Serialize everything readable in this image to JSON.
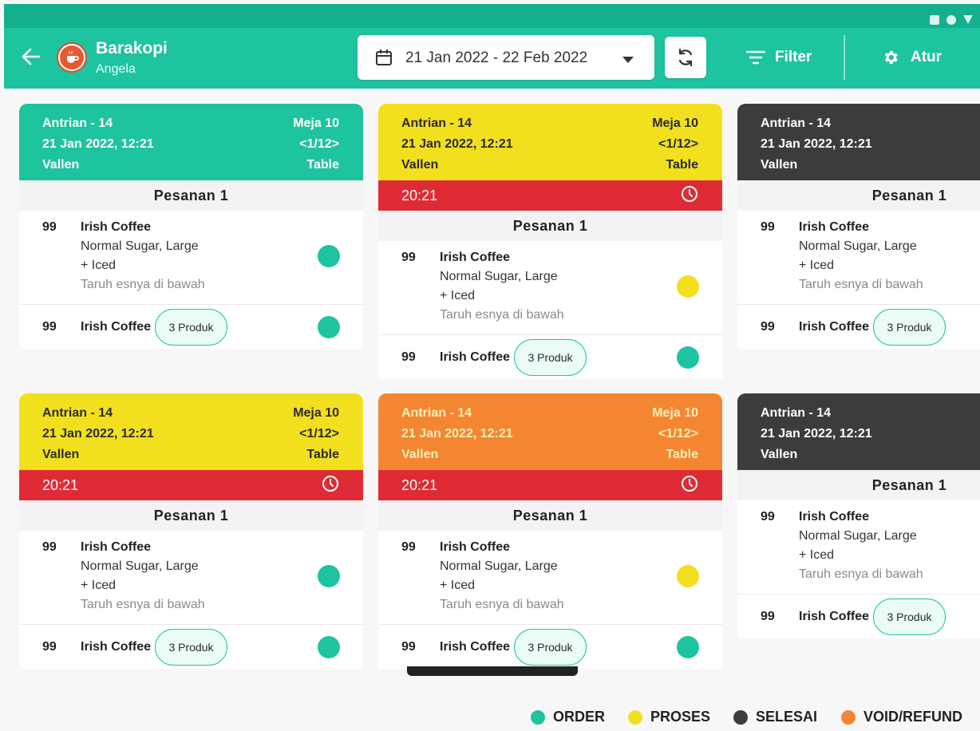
{
  "colors": {
    "appbar": "#1ec39f",
    "order": "#1ec39f",
    "proses": "#f2e01e",
    "selesai": "#3b3d3c",
    "void_refund": "#f58631",
    "timer": "#df2b35"
  },
  "header": {
    "back_icon": "arrow-left-icon",
    "shop_name": "Barakopi",
    "user_name": "Angela",
    "date_range": "21 Jan 2022 - 22 Feb 2022",
    "filter_label": "Filter",
    "settings_label": "Atur"
  },
  "cards": [
    {
      "status": "order",
      "queue": "Antrian - 14",
      "datetime": "21 Jan 2022, 12:21",
      "customer": "Vallen",
      "table": "Meja 10",
      "table_page": "<1/12>",
      "table_type": "Table",
      "timer": "",
      "section": "Pesanan 1",
      "item1": {
        "qty": "99",
        "name": "Irish Coffee",
        "variant": "Normal Sugar, Large",
        "addon": "+ Iced",
        "note": "Taruh esnya di bawah",
        "dot": "order"
      },
      "item2": {
        "qty": "99",
        "name": "Irish Coffee",
        "badge": "3 Produk",
        "dot": "order"
      }
    },
    {
      "status": "proses",
      "queue": "Antrian - 14",
      "datetime": "21 Jan 2022, 12:21",
      "customer": "Vallen",
      "table": "Meja 10",
      "table_page": "<1/12>",
      "table_type": "Table",
      "timer": "20:21",
      "section": "Pesanan 1",
      "item1": {
        "qty": "99",
        "name": "Irish Coffee",
        "variant": "Normal Sugar, Large",
        "addon": "+ Iced",
        "note": "Taruh esnya di bawah",
        "dot": "proses"
      },
      "item2": {
        "qty": "99",
        "name": "Irish Coffee",
        "badge": "3 Produk",
        "dot": "order"
      }
    },
    {
      "status": "selesai",
      "queue": "Antrian - 14",
      "datetime": "21 Jan 2022, 12:21",
      "customer": "Vallen",
      "table": "",
      "table_page": "",
      "table_type": "",
      "timer": "",
      "section": "Pesanan 1",
      "item1": {
        "qty": "99",
        "name": "Irish Coffee",
        "variant": "Normal Sugar, Large",
        "addon": "+ Iced",
        "note": "Taruh esnya di bawah",
        "dot": ""
      },
      "item2": {
        "qty": "99",
        "name": "Irish Coffee",
        "badge": "3 Produk",
        "dot": ""
      }
    },
    {
      "status": "proses",
      "queue": "Antrian - 14",
      "datetime": "21 Jan 2022, 12:21",
      "customer": "Vallen",
      "table": "Meja 10",
      "table_page": "<1/12>",
      "table_type": "Table",
      "timer": "20:21",
      "section": "Pesanan 1",
      "item1": {
        "qty": "99",
        "name": "Irish Coffee",
        "variant": "Normal Sugar, Large",
        "addon": "+ Iced",
        "note": "Taruh esnya di bawah",
        "dot": "order"
      },
      "item2": {
        "qty": "99",
        "name": "Irish Coffee",
        "badge": "3 Produk",
        "dot": "order"
      }
    },
    {
      "status": "void_refund",
      "queue": "Antrian - 14",
      "datetime": "21 Jan 2022, 12:21",
      "customer": "Vallen",
      "table": "Meja 10",
      "table_page": "<1/12>",
      "table_type": "Table",
      "timer": "20:21",
      "section": "Pesanan 1",
      "item1": {
        "qty": "99",
        "name": "Irish Coffee",
        "variant": "Normal Sugar, Large",
        "addon": "+ Iced",
        "note": "Taruh esnya di bawah",
        "dot": "proses"
      },
      "item2": {
        "qty": "99",
        "name": "Irish Coffee",
        "badge": "3 Produk",
        "dot": "order"
      }
    },
    {
      "status": "selesai",
      "queue": "Antrian - 14",
      "datetime": "21 Jan 2022, 12:21",
      "customer": "Vallen",
      "table": "",
      "table_page": "",
      "table_type": "",
      "timer": "",
      "section": "Pesanan 1",
      "item1": {
        "qty": "99",
        "name": "Irish Coffee",
        "variant": "Normal Sugar, Large",
        "addon": "+ Iced",
        "note": "Taruh esnya di bawah",
        "dot": ""
      },
      "item2": {
        "qty": "99",
        "name": "Irish Coffee",
        "badge": "3 Produk",
        "dot": ""
      }
    }
  ],
  "legend": [
    {
      "label": "ORDER",
      "color": "order"
    },
    {
      "label": "PROSES",
      "color": "proses"
    },
    {
      "label": "SELESAI",
      "color": "selesai"
    },
    {
      "label": "VOID/REFUND",
      "color": "void_refund"
    }
  ]
}
